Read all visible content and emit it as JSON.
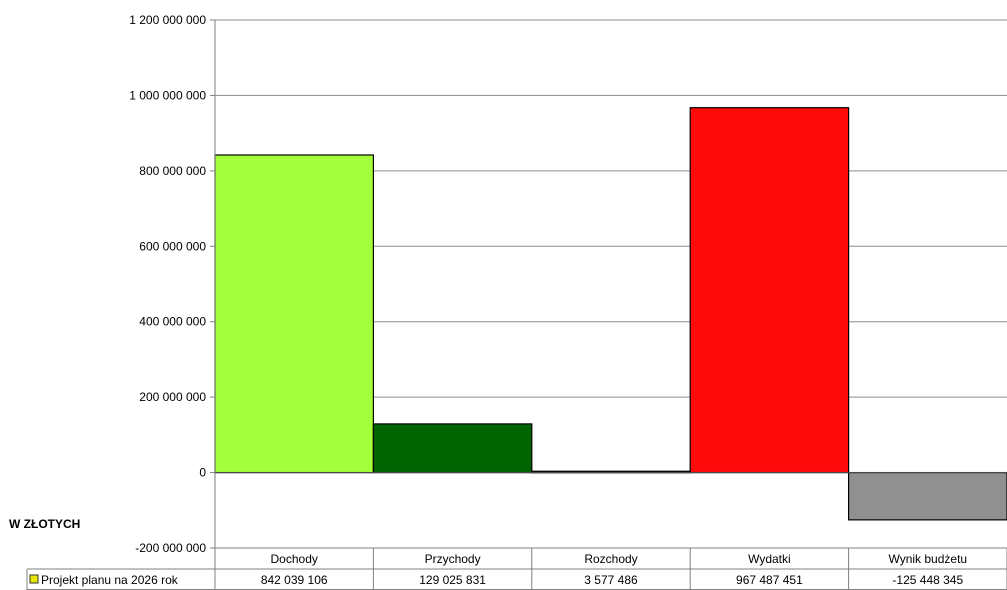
{
  "unit_label": "W   ZŁOTYCH",
  "chart_data": {
    "type": "bar",
    "categories": [
      "Dochody",
      "Przychody",
      "Rozchody",
      "Wydatki",
      "Wynik budżetu"
    ],
    "series": [
      {
        "name": "Projekt planu na 2026 rok",
        "values": [
          842039106,
          129025831,
          3577486,
          967487451,
          -125448345
        ],
        "value_labels": [
          "842 039 106",
          "129 025 831",
          "3 577 486",
          "967 487 451",
          "-125 448 345"
        ]
      }
    ],
    "bar_colors": [
      "#a3ff3b",
      "#006400",
      "#0a5a0a",
      "#ff0a0a",
      "#909090"
    ],
    "legend_marker_color": "#e8e800",
    "ylim": [
      -200000000,
      1200000000
    ],
    "yticks": [
      1200000000,
      1000000000,
      800000000,
      600000000,
      400000000,
      200000000,
      0,
      -200000000
    ],
    "ytick_labels": [
      "1 200 000 000",
      "1 000 000 000",
      "800 000 000",
      "600 000 000",
      "400 000 000",
      "200 000 000",
      "0",
      "-200 000 000"
    ],
    "grid": true,
    "legend": "data-table-row"
  }
}
